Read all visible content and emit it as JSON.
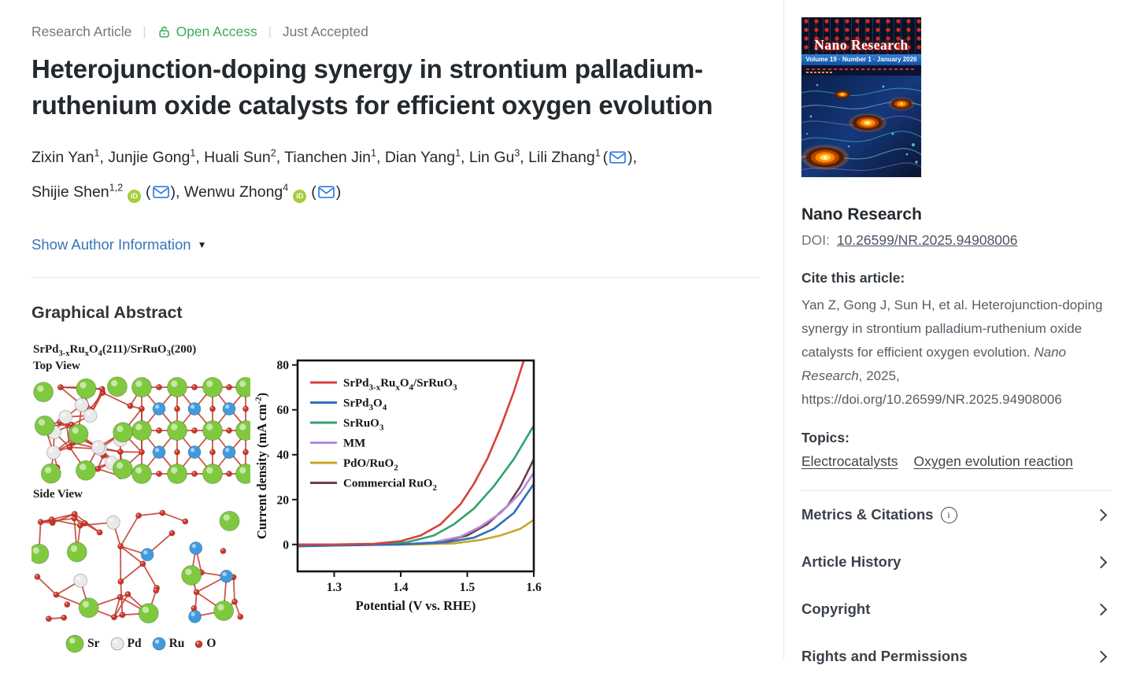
{
  "icons": {
    "caret_down": "▼",
    "info": "i"
  },
  "header": {
    "article_type": "Research Article",
    "separator": "|",
    "open_access_label": "Open Access",
    "status_label": "Just Accepted",
    "open_access_color": "#3cab5b"
  },
  "article": {
    "title": "Heterojunction-doping synergy in strontium palladium-ruthenium oxide catalysts for efficient oxygen evolution",
    "show_author_info_label": "Show Author Information",
    "author_separator": ", ",
    "email_open": "(",
    "email_close": ")",
    "orcid_color": "#a6ce39",
    "email_icon_color": "#2e7ce0",
    "authors": [
      {
        "name": "Zixin Yan",
        "sup": "1"
      },
      {
        "name": "Junjie Gong",
        "sup": "1"
      },
      {
        "name": "Huali Sun",
        "sup": "2"
      },
      {
        "name": "Tianchen Jin",
        "sup": "1"
      },
      {
        "name": "Dian Yang",
        "sup": "1"
      },
      {
        "name": "Lin Gu",
        "sup": "3"
      },
      {
        "name": "Lili Zhang",
        "sup": "1",
        "email": true
      },
      {
        "name": "Shijie Shen",
        "sup": "1,2",
        "orcid": true,
        "email": true,
        "break_before": true
      },
      {
        "name": "Wenwu Zhong",
        "sup": "4",
        "orcid": true,
        "email": true
      }
    ]
  },
  "graphical_abstract": {
    "heading": "Graphical Abstract",
    "structure_title": "SrPd_{3-x}Ru_{x}O_{4}(211)/SrRuO_{3}(200)",
    "top_view_label": "Top View",
    "side_view_label": "Side View",
    "bond_color": "#c3392b",
    "atom_legend": [
      {
        "key": "Sr",
        "label": "Sr",
        "color": "#7fc93e",
        "r": 11
      },
      {
        "key": "Pd",
        "label": "Pd",
        "color": "#e9e9e9",
        "r": 8
      },
      {
        "key": "Ru",
        "label": "Ru",
        "color": "#3f9be0",
        "r": 8
      },
      {
        "key": "O",
        "label": "O",
        "color": "#d43426",
        "r": 4.5
      }
    ]
  },
  "chart_data": {
    "type": "line",
    "title": "",
    "xlabel": "Potential (V vs. RHE)",
    "ylabel": "Current density (mA cm^{-2})",
    "xlim": [
      1.245,
      1.6
    ],
    "ylim": [
      -12,
      82
    ],
    "xticks": [
      1.3,
      1.4,
      1.5,
      1.6
    ],
    "yticks": [
      0,
      20,
      40,
      60,
      80
    ],
    "grid": false,
    "legend_position": "top-left",
    "series": [
      {
        "name": "SrPd_{3-x}Ru_{x}O_{4}/SrRuO_{3}",
        "color": "#d8403c",
        "x": [
          1.245,
          1.3,
          1.36,
          1.4,
          1.43,
          1.46,
          1.49,
          1.51,
          1.53,
          1.55,
          1.57,
          1.585,
          1.59
        ],
        "y": [
          0,
          0,
          0.3,
          1.5,
          4,
          9,
          18,
          27,
          38,
          52,
          68,
          82,
          86
        ]
      },
      {
        "name": "SrPd_{3}O_{4}",
        "color": "#2f6fba",
        "x": [
          1.245,
          1.3,
          1.4,
          1.47,
          1.51,
          1.54,
          1.57,
          1.6
        ],
        "y": [
          -0.8,
          -0.5,
          0,
          1,
          3,
          7,
          14,
          27
        ]
      },
      {
        "name": "SrRuO_{3}",
        "color": "#2fa36e",
        "x": [
          1.245,
          1.36,
          1.41,
          1.45,
          1.48,
          1.51,
          1.54,
          1.57,
          1.6
        ],
        "y": [
          0,
          0,
          1,
          4,
          9,
          16,
          26,
          38,
          53
        ]
      },
      {
        "name": "MM",
        "color": "#b48ade",
        "x": [
          1.245,
          1.4,
          1.45,
          1.49,
          1.52,
          1.55,
          1.58,
          1.6
        ],
        "y": [
          0,
          0,
          1,
          3.5,
          8,
          14,
          23,
          32
        ]
      },
      {
        "name": "PdO/RuO_{2}",
        "color": "#c9a62a",
        "x": [
          1.245,
          1.42,
          1.48,
          1.52,
          1.55,
          1.58,
          1.6
        ],
        "y": [
          0,
          0,
          0.5,
          2,
          4,
          7,
          11
        ]
      },
      {
        "name": "Commercial RuO_{2}",
        "color": "#6f3d49",
        "x": [
          1.245,
          1.4,
          1.46,
          1.5,
          1.53,
          1.56,
          1.58,
          1.6
        ],
        "y": [
          0,
          0,
          1,
          4,
          9,
          17,
          26,
          38
        ]
      }
    ]
  },
  "sidebar": {
    "cover": {
      "title": "Nano Research",
      "banner": "Volume 19 · Number 1 · January 2026"
    },
    "journal_title": "Nano Research",
    "doi_label": "DOI:",
    "doi": "10.26599/NR.2025.94908006",
    "cite_heading": "Cite this article:",
    "citation": {
      "text_before": "Yan Z, Gong J, Sun H, et al. Heterojunction-doping synergy in strontium palladium-ruthenium oxide catalysts for efficient oxygen evolution. ",
      "journal_italic": "Nano Research",
      "text_after": ", 2025, https://doi.org/10.26599/NR.2025.94908006"
    },
    "topics_heading": "Topics:",
    "topics": [
      "Electrocatalysts",
      "Oxygen evolution reaction"
    ],
    "sections": [
      {
        "label": "Metrics & Citations",
        "info_icon": true
      },
      {
        "label": "Article History"
      },
      {
        "label": "Copyright"
      },
      {
        "label": "Rights and Permissions"
      }
    ]
  }
}
